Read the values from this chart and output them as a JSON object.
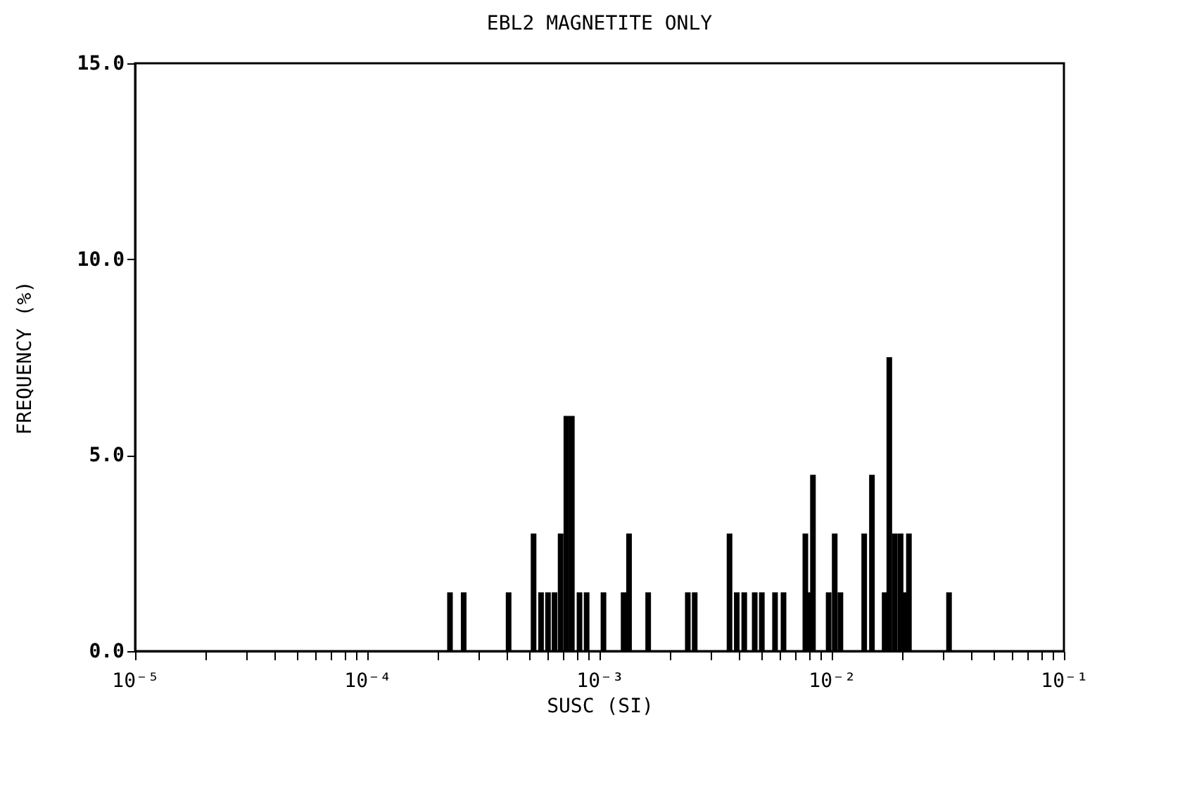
{
  "chart_data": {
    "type": "bar",
    "title": "EBL2  MAGNETITE ONLY",
    "xlabel": "SUSC (SI)",
    "ylabel": "FREQUENCY (%)",
    "x": [
      0.000227,
      0.00026,
      0.000406,
      0.00052,
      0.00056,
      0.0006,
      0.00064,
      0.00068,
      0.00072,
      0.00076,
      0.00082,
      0.00088,
      0.00104,
      0.00127,
      0.00134,
      0.00162,
      0.0024,
      0.00257,
      0.00363,
      0.0039,
      0.0042,
      0.00466,
      0.005,
      0.0057,
      0.0062,
      0.0077,
      0.008,
      0.0083,
      0.0097,
      0.0103,
      0.0109,
      0.0138,
      0.0149,
      0.0169,
      0.0177,
      0.0187,
      0.0198,
      0.0205,
      0.0215,
      0.032
    ],
    "values": [
      1.5,
      1.5,
      1.5,
      3.0,
      1.5,
      1.5,
      1.5,
      3.0,
      6.0,
      6.0,
      1.5,
      1.5,
      1.5,
      1.5,
      3.0,
      1.5,
      1.5,
      1.5,
      3.0,
      1.5,
      1.5,
      1.5,
      1.5,
      1.5,
      1.5,
      3.0,
      1.5,
      4.5,
      1.5,
      3.0,
      1.5,
      3.0,
      4.5,
      1.5,
      7.5,
      3.0,
      3.0,
      1.5,
      3.0,
      1.5
    ],
    "color": "#000000",
    "log": "x",
    "grid": false,
    "xlim": [
      1e-05,
      0.1
    ],
    "xticks": [
      {
        "value": 1e-05,
        "label": "10⁻⁵"
      },
      {
        "value": 2e-05,
        "label": null
      },
      {
        "value": 3e-05,
        "label": null
      },
      {
        "value": 4e-05,
        "label": null
      },
      {
        "value": 5e-05,
        "label": null
      },
      {
        "value": 6e-05,
        "label": null
      },
      {
        "value": 7e-05,
        "label": null
      },
      {
        "value": 8e-05,
        "label": null
      },
      {
        "value": 9e-05,
        "label": null
      },
      {
        "value": 0.0001,
        "label": "10⁻⁴"
      },
      {
        "value": 0.0002,
        "label": null
      },
      {
        "value": 0.0003,
        "label": null
      },
      {
        "value": 0.0004,
        "label": null
      },
      {
        "value": 0.0005,
        "label": null
      },
      {
        "value": 0.0006,
        "label": null
      },
      {
        "value": 0.0007,
        "label": null
      },
      {
        "value": 0.0008,
        "label": null
      },
      {
        "value": 0.0009,
        "label": null
      },
      {
        "value": 0.001,
        "label": "10⁻³"
      },
      {
        "value": 0.002,
        "label": null
      },
      {
        "value": 0.003,
        "label": null
      },
      {
        "value": 0.004,
        "label": null
      },
      {
        "value": 0.005,
        "label": null
      },
      {
        "value": 0.006,
        "label": null
      },
      {
        "value": 0.007,
        "label": null
      },
      {
        "value": 0.008,
        "label": null
      },
      {
        "value": 0.009,
        "label": null
      },
      {
        "value": 0.01,
        "label": "10⁻²"
      },
      {
        "value": 0.02,
        "label": null
      },
      {
        "value": 0.03,
        "label": null
      },
      {
        "value": 0.04,
        "label": null
      },
      {
        "value": 0.05,
        "label": null
      },
      {
        "value": 0.06,
        "label": null
      },
      {
        "value": 0.07,
        "label": null
      },
      {
        "value": 0.08,
        "label": null
      },
      {
        "value": 0.09,
        "label": null
      },
      {
        "value": 0.1,
        "label": "10⁻¹"
      }
    ],
    "ylim": [
      0,
      15
    ],
    "yticks": [
      {
        "value": 0,
        "label": "0.0"
      },
      {
        "value": 5,
        "label": "5.0"
      },
      {
        "value": 10,
        "label": "10.0"
      },
      {
        "value": 15,
        "label": "15.0"
      }
    ]
  }
}
